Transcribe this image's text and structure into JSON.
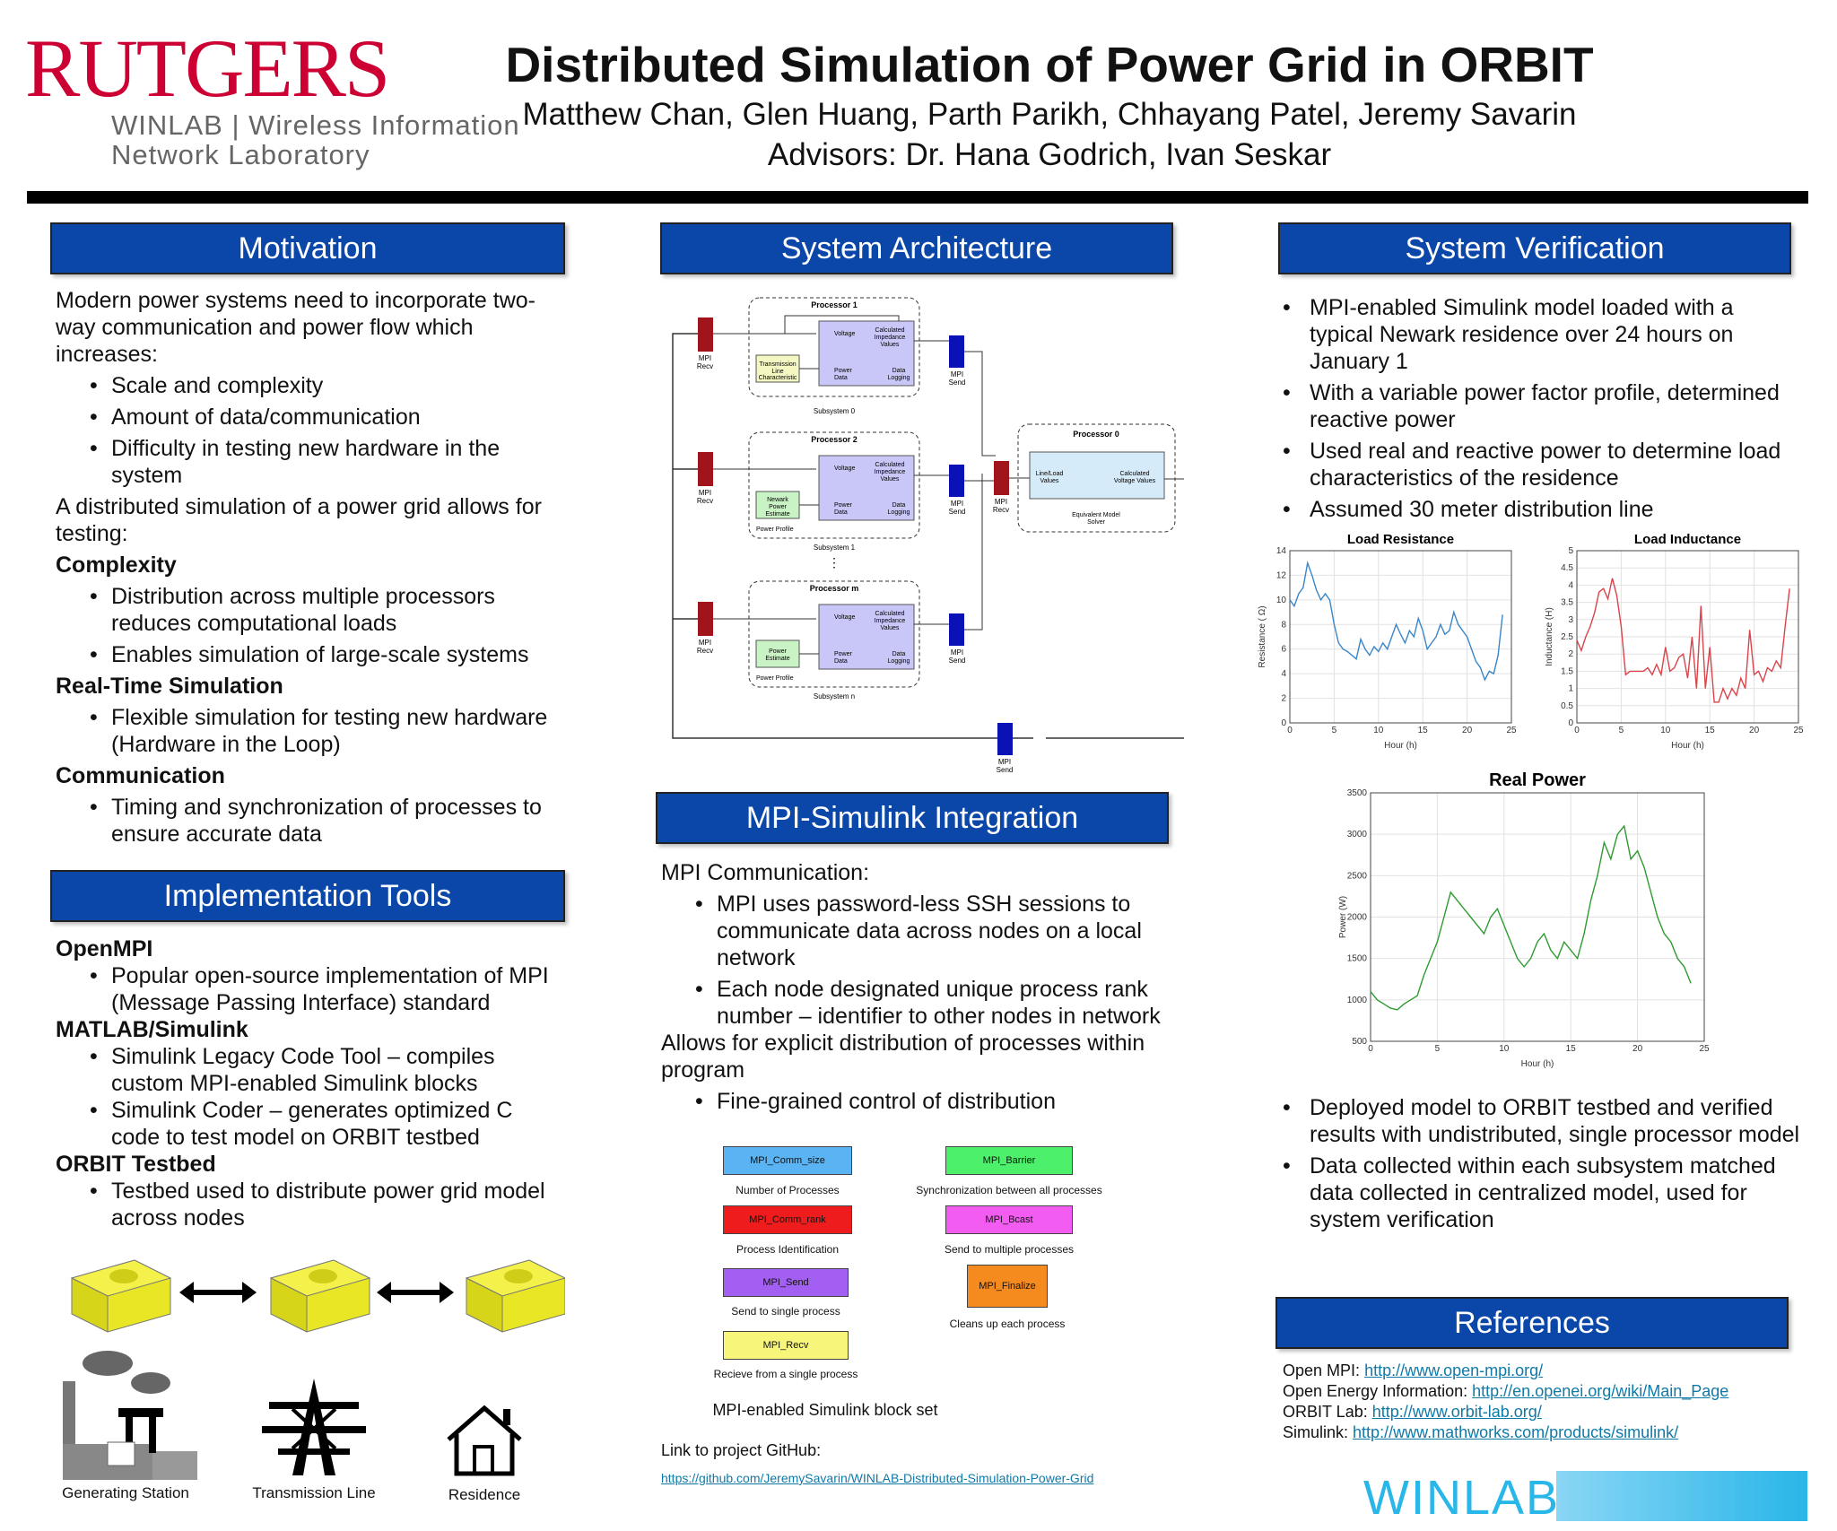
{
  "header": {
    "logo_rutgers": "RUTGERS",
    "logo_winlab_line1": "WINLAB | Wireless Information",
    "logo_winlab_line2": "Network Laboratory",
    "title": "Distributed Simulation of Power Grid in ORBIT",
    "authors": "Matthew Chan, Glen Huang, Parth Parikh, Chhayang Patel, Jeremy Savarin",
    "advisors": "Advisors: Dr. Hana Godrich, Ivan Seskar"
  },
  "motivation": {
    "heading": "Motivation",
    "intro": "Modern power systems need to incorporate two-way communication and power flow which increases:",
    "intro_bullets": [
      "Scale and complexity",
      "Amount of data/communication",
      "Difficulty in testing new hardware in the system"
    ],
    "para2": "A distributed simulation of a power grid allows for testing:",
    "sections": [
      {
        "title": "Complexity",
        "bullets": [
          "Distribution across multiple processors reduces computational loads",
          "Enables simulation of large-scale systems"
        ]
      },
      {
        "title": "Real-Time Simulation",
        "bullets": [
          "Flexible simulation for testing new hardware (Hardware in the Loop)"
        ]
      },
      {
        "title": "Communication",
        "bullets": [
          "Timing and synchronization of processes to ensure accurate data"
        ]
      }
    ]
  },
  "tools": {
    "heading": "Implementation Tools",
    "sections": [
      {
        "title": "OpenMPI",
        "bullets": [
          "Popular open-source implementation of MPI (Message Passing Interface) standard"
        ]
      },
      {
        "title": "MATLAB/Simulink",
        "bullets": [
          "Simulink Legacy Code Tool – compiles custom MPI-enabled Simulink blocks",
          "Simulink Coder – generates optimized C code to test model on ORBIT testbed"
        ]
      },
      {
        "title": "ORBIT Testbed",
        "bullets": [
          "Testbed used to distribute power grid model across nodes"
        ]
      }
    ],
    "icons": [
      "Generating Station",
      "Transmission Line",
      "Residence"
    ]
  },
  "architecture": {
    "heading": "System Architecture",
    "processors": [
      {
        "name": "Processor 1",
        "subsystem": "Subsystem 0",
        "input": "Transmission Line Characteristic",
        "profile": ""
      },
      {
        "name": "Processor 2",
        "subsystem": "Subsystem 1",
        "input": "Newark Power Estimate",
        "profile": "Power Profile"
      },
      {
        "name": "Processor m",
        "subsystem": "Subsystem n",
        "input": "Power Estimate",
        "profile": "Power Profile"
      }
    ],
    "block_voltage": "Voltage",
    "block_calc": "Calculated Impedance Values",
    "block_power": "Power Data",
    "block_logging": "Data Logging",
    "mpi_recv": "MPI Recv",
    "mpi_send": "MPI Send",
    "proc0": "Processor 0",
    "proc0_in": "Line/Load Values",
    "proc0_out": "Calculated Voltage Values",
    "proc0_solver": "Equivalent Model Solver",
    "dots": "⋮"
  },
  "integration": {
    "heading": "MPI-Simulink Integration",
    "comm_title": "MPI Communication:",
    "comm_bullets": [
      "MPI uses password-less SSH sessions to communicate data across nodes on a local network",
      "Each node designated unique process rank number – identifier to other nodes in network"
    ],
    "para": "Allows for explicit distribution of processes within program",
    "para_bullets": [
      "Fine-grained control of distribution"
    ],
    "blocks": [
      {
        "label": "MPI_Comm_size",
        "caption": "Number of Processes",
        "color": "#5ab3f2"
      },
      {
        "label": "MPI_Barrier",
        "caption": "Synchronization between all processes",
        "color": "#4df06a"
      },
      {
        "label": "MPI_Comm_rank",
        "caption": "Process Identification",
        "color": "#ee1c1c"
      },
      {
        "label": "MPI_Bcast",
        "caption": "Send to multiple processes",
        "color": "#f25cf0"
      },
      {
        "label": "MPI_Send",
        "caption": "Send to single process",
        "color": "#a35ef2"
      },
      {
        "label": "MPI_Finalize",
        "caption": "Cleans up each process",
        "color": "#f58a1f"
      },
      {
        "label": "MPI_Recv",
        "caption": "Recieve from a single process",
        "color": "#f7f57a"
      }
    ],
    "block_set_caption": "MPI-enabled Simulink block set",
    "github_label": "Link to project GitHub:",
    "github_url": "https://github.com/JeremySavarin/WINLAB-Distributed-Simulation-Power-Grid"
  },
  "verification": {
    "heading": "System Verification",
    "bullets_top": [
      "MPI-enabled Simulink model loaded with a typical Newark residence over 24 hours on January 1",
      "With a variable power factor profile, determined reactive power",
      "Used real and reactive power to determine load characteristics of the residence",
      "Assumed 30 meter distribution line"
    ],
    "bullets_bottom": [
      "Deployed model to ORBIT testbed and verified results with undistributed, single processor model",
      "Data collected within each subsystem matched data collected in centralized model, used for system verification"
    ]
  },
  "chart_data": [
    {
      "type": "line",
      "title": "Load Resistance",
      "xlabel": "Hour (h)",
      "ylabel": "Resistance ( Ω)",
      "xlim": [
        0,
        25
      ],
      "ylim": [
        0,
        14
      ],
      "xticks": [
        0,
        5,
        10,
        15,
        20,
        25
      ],
      "yticks": [
        0,
        2,
        4,
        6,
        8,
        10,
        12,
        14
      ],
      "color": "#3a86c8",
      "x": [
        0,
        0.5,
        1,
        1.5,
        2,
        2.5,
        3,
        3.5,
        4,
        4.5,
        5,
        5.5,
        6,
        6.5,
        7,
        7.5,
        8,
        8.5,
        9,
        9.5,
        10,
        10.5,
        11,
        11.5,
        12,
        12.5,
        13,
        13.5,
        14,
        14.5,
        15,
        15.5,
        16,
        16.5,
        17,
        17.5,
        18,
        18.5,
        19,
        19.5,
        20,
        20.5,
        21,
        21.5,
        22,
        22.5,
        23,
        23.5,
        24
      ],
      "y": [
        10,
        9.5,
        10.5,
        11,
        13,
        12,
        10.8,
        10,
        10.5,
        10,
        8,
        6.5,
        6,
        5.8,
        5.5,
        5.2,
        6.8,
        6,
        5.5,
        6.2,
        5.8,
        6.5,
        6,
        7,
        8,
        7.2,
        6.5,
        7.5,
        7,
        8.5,
        7.5,
        6,
        6.5,
        7,
        8,
        7.2,
        7.5,
        9,
        8,
        7.5,
        7,
        6,
        5,
        4.5,
        3.5,
        4.2,
        4,
        5.5,
        8.8
      ]
    },
    {
      "type": "line",
      "title": "Load Inductance",
      "xlabel": "Hour (h)",
      "ylabel": "Inductance (H)",
      "xlim": [
        0,
        25
      ],
      "ylim": [
        0,
        5
      ],
      "xticks": [
        0,
        5,
        10,
        15,
        20,
        25
      ],
      "yticks": [
        0,
        0.5,
        1,
        1.5,
        2,
        2.5,
        3,
        3.5,
        4,
        4.5,
        5
      ],
      "color": "#d9434a",
      "x": [
        0,
        0.5,
        1,
        1.5,
        2,
        2.5,
        3,
        3.5,
        4,
        4.5,
        5,
        5.5,
        6,
        6.5,
        7,
        7.5,
        8,
        8.5,
        9,
        9.5,
        10,
        10.5,
        11,
        11.5,
        12,
        12.5,
        13,
        13.5,
        14,
        14.5,
        15,
        15.5,
        16,
        16.5,
        17,
        17.5,
        18,
        18.5,
        19,
        19.5,
        20,
        20.5,
        21,
        21.5,
        22,
        22.5,
        23,
        23.5,
        24
      ],
      "y": [
        2.4,
        2.1,
        2.5,
        2.8,
        3.2,
        3.8,
        3.9,
        3.6,
        4.2,
        3.7,
        2.8,
        1.4,
        1.5,
        1.5,
        1.5,
        1.5,
        1.6,
        1.4,
        1.7,
        1.4,
        2.2,
        1.5,
        1.6,
        1.9,
        2.0,
        1.3,
        2.5,
        1.0,
        3.4,
        1.0,
        2.2,
        0.6,
        0.6,
        1.0,
        0.7,
        1.0,
        0.8,
        1.3,
        1.0,
        2.7,
        1.4,
        1.5,
        1.2,
        1.6,
        1.5,
        1.8,
        1.6,
        2.8,
        3.9
      ]
    },
    {
      "type": "line",
      "title": "Real Power",
      "xlabel": "Hour (h)",
      "ylabel": "Power (W)",
      "xlim": [
        0,
        25
      ],
      "ylim": [
        500,
        3500
      ],
      "xticks": [
        0,
        5,
        10,
        15,
        20,
        25
      ],
      "yticks": [
        500,
        1000,
        1500,
        2000,
        2500,
        3000,
        3500
      ],
      "color": "#2f9a30",
      "x": [
        0,
        0.5,
        1,
        1.5,
        2,
        2.5,
        3,
        3.5,
        4,
        4.5,
        5,
        5.5,
        6,
        6.5,
        7,
        7.5,
        8,
        8.5,
        9,
        9.5,
        10,
        10.5,
        11,
        11.5,
        12,
        12.5,
        13,
        13.5,
        14,
        14.5,
        15,
        15.5,
        16,
        16.5,
        17,
        17.5,
        18,
        18.5,
        19,
        19.5,
        20,
        20.5,
        21,
        21.5,
        22,
        22.5,
        23,
        23.5,
        24
      ],
      "y": [
        1100,
        1000,
        950,
        900,
        880,
        950,
        1000,
        1050,
        1300,
        1500,
        1700,
        2000,
        2300,
        2200,
        2100,
        2000,
        1900,
        1800,
        2000,
        2100,
        1900,
        1700,
        1500,
        1400,
        1500,
        1700,
        1800,
        1600,
        1500,
        1700,
        1600,
        1500,
        1800,
        2200,
        2500,
        2900,
        2700,
        3000,
        3100,
        2700,
        2800,
        2600,
        2300,
        2000,
        1800,
        1700,
        1500,
        1400,
        1200
      ]
    }
  ],
  "references": {
    "heading": "References",
    "items": [
      {
        "label": "Open MPI:",
        "url": "http://www.open-mpi.org/"
      },
      {
        "label": "Open Energy Information:",
        "url": "http://en.openei.org/wiki/Main_Page"
      },
      {
        "label": "ORBIT Lab:",
        "url": "http://www.orbit-lab.org/"
      },
      {
        "label": "Simulink:",
        "url": "http://www.mathworks.com/products/simulink/"
      }
    ],
    "logo": "WINLAB"
  },
  "colors": {
    "header_blue": "#0a47a9",
    "rutgers_red": "#cc0033",
    "winlab_cyan": "#29b6e8"
  }
}
